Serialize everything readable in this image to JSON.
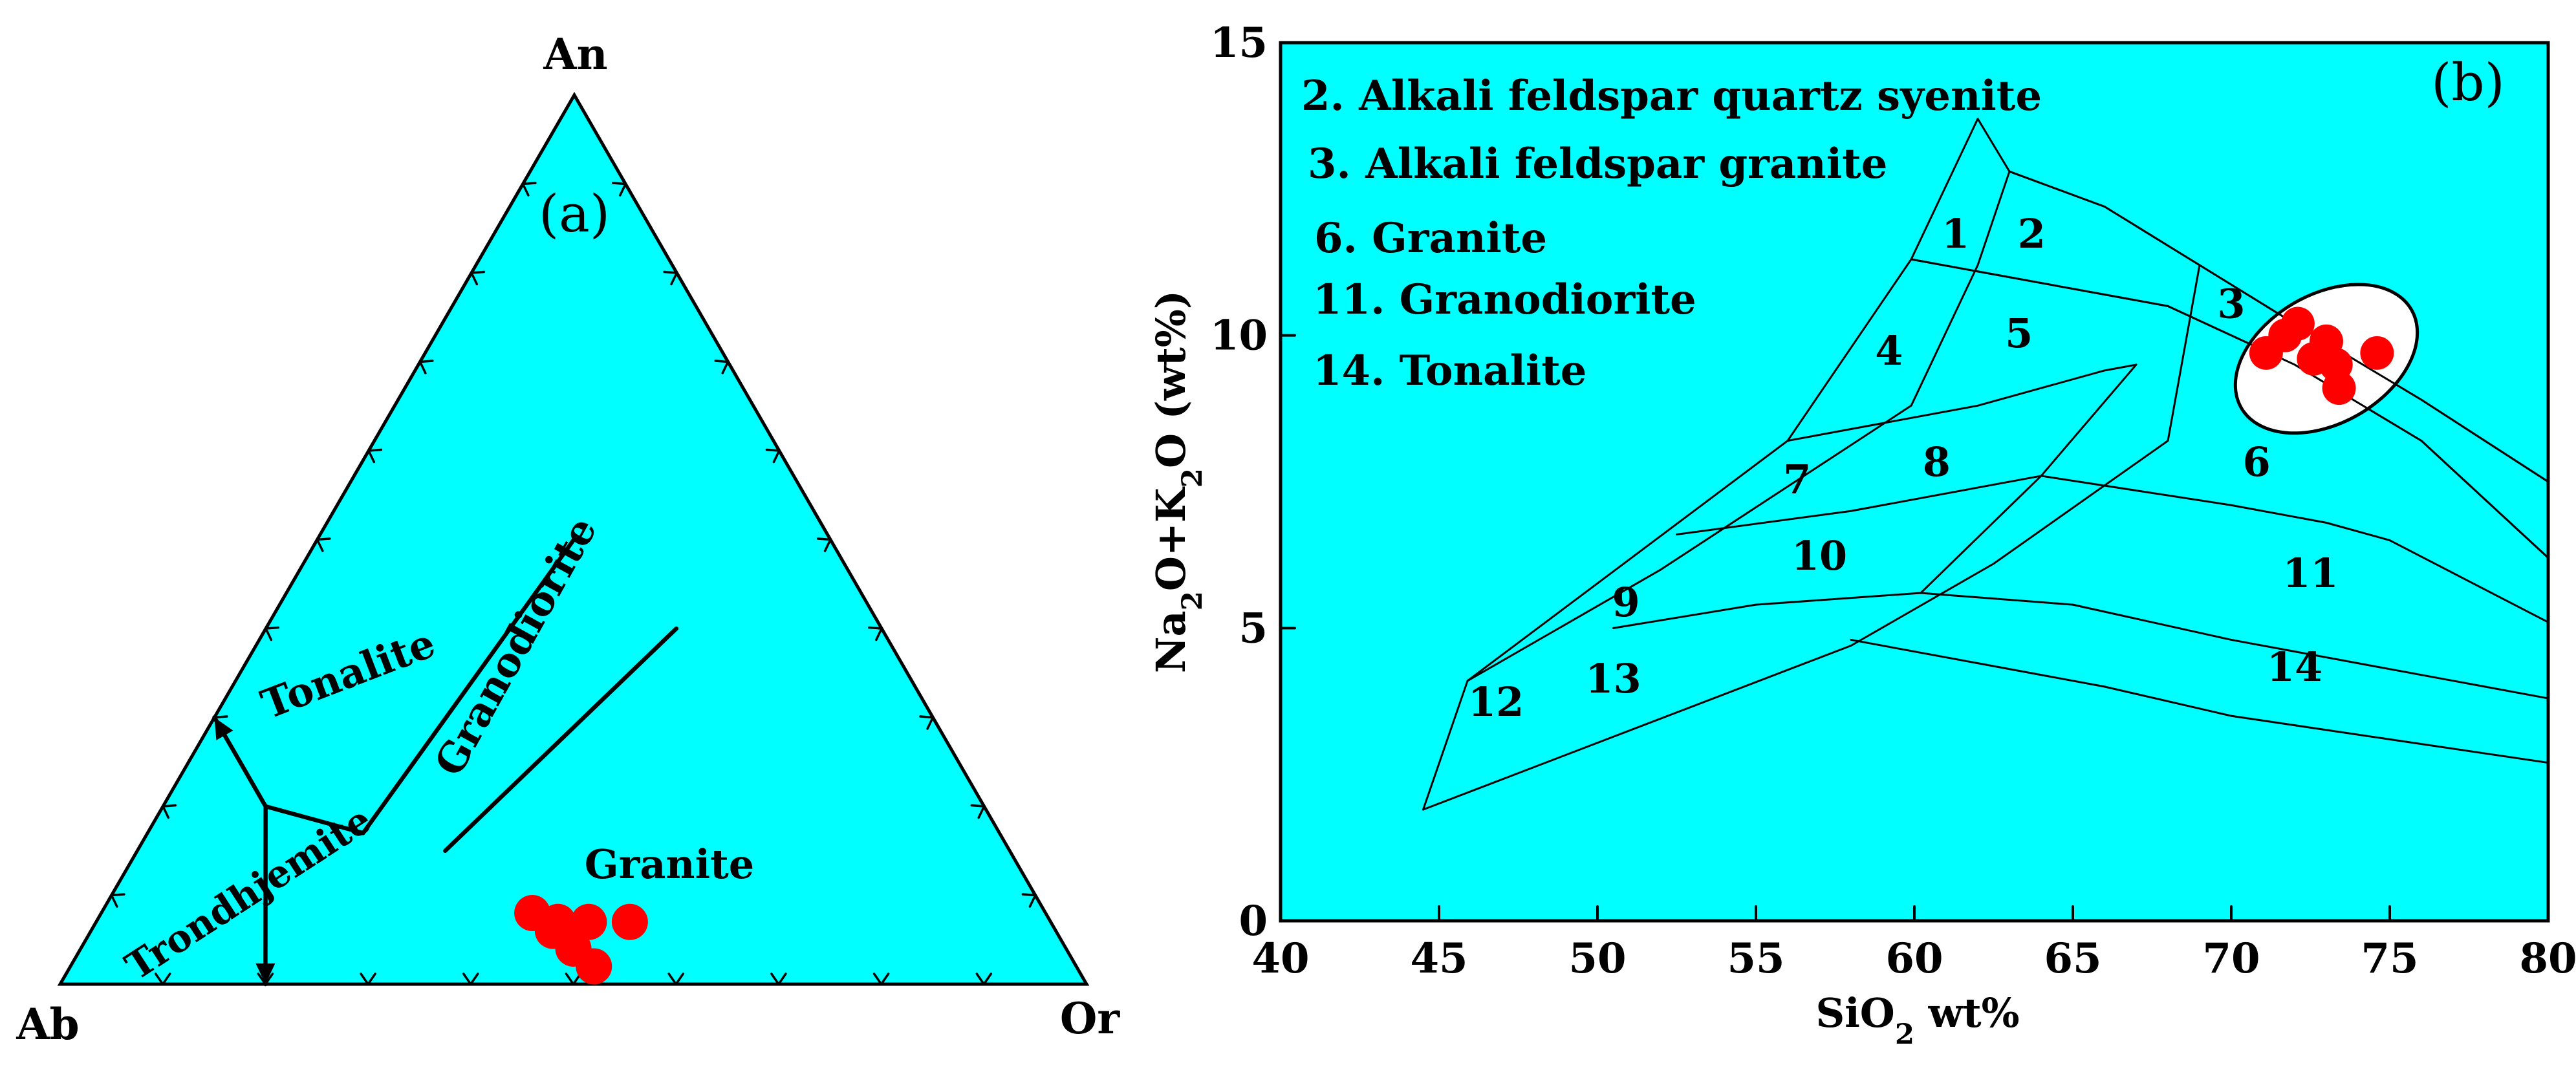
{
  "chart_data": [
    {
      "type": "ternary",
      "panel_label": "(a)",
      "vertices": {
        "top": "An",
        "left": "Ab",
        "right": "Or"
      },
      "fields": [
        {
          "label": "Tonalite"
        },
        {
          "label": "Granodiorite"
        },
        {
          "label": "Trondhjemite"
        },
        {
          "label": "Granite"
        }
      ],
      "field_boundaries": [
        [
          {
            "an": 0.3,
            "ab": 0.7,
            "or": 0.0
          },
          {
            "an": 0.2,
            "ab": 0.7,
            "or": 0.1
          },
          {
            "an": 0.17,
            "ab": 0.62,
            "or": 0.21
          }
        ],
        [
          {
            "an": 0.2,
            "ab": 0.7,
            "or": 0.1
          },
          {
            "an": 0.0,
            "ab": 0.8,
            "or": 0.2
          }
        ],
        [
          {
            "an": 0.17,
            "ab": 0.62,
            "or": 0.21
          },
          {
            "an": 0.5,
            "ab": 0.25,
            "or": 0.25
          }
        ],
        [
          {
            "an": 0.15,
            "ab": 0.55,
            "or": 0.3
          },
          {
            "an": 0.4,
            "ab": 0.2,
            "or": 0.4
          }
        ]
      ],
      "points": [
        {
          "an": 0.08,
          "ab": 0.5,
          "or": 0.42
        },
        {
          "an": 0.06,
          "ab": 0.49,
          "or": 0.45
        },
        {
          "an": 0.07,
          "ab": 0.48,
          "or": 0.45
        },
        {
          "an": 0.04,
          "ab": 0.48,
          "or": 0.48
        },
        {
          "an": 0.07,
          "ab": 0.45,
          "or": 0.48
        },
        {
          "an": 0.02,
          "ab": 0.47,
          "or": 0.51
        },
        {
          "an": 0.07,
          "ab": 0.41,
          "or": 0.52
        }
      ],
      "point_color": "#ff0000",
      "background_color": "#00ffff"
    },
    {
      "type": "scatter",
      "panel_label": "(b)",
      "xlabel": "SiO2 wt%",
      "ylabel": "Na2O+K2O (wt%)",
      "xlim": [
        40,
        80
      ],
      "ylim": [
        0,
        15
      ],
      "xticks": [
        40,
        45,
        50,
        55,
        60,
        65,
        70,
        75,
        80
      ],
      "yticks": [
        0,
        5,
        10,
        15
      ],
      "legend": [
        "2. Alkali feldspar quartz syenite",
        "3. Alkali feldspar granite",
        "6. Granite",
        "11. Granodiorite",
        "14. Tonalite"
      ],
      "field_boundaries": [
        [
          [
            44.5,
            1.9
          ],
          [
            45.9,
            4.1
          ],
          [
            56,
            8.2
          ],
          [
            59.9,
            11.3
          ],
          [
            62,
            13.7
          ],
          [
            63,
            12.8
          ]
        ],
        [
          [
            63,
            12.8
          ],
          [
            66,
            12.2
          ],
          [
            69,
            11.2
          ],
          [
            72,
            10.2
          ],
          [
            76,
            8.9
          ],
          [
            80,
            7.5
          ]
        ],
        [
          [
            44.5,
            1.9
          ],
          [
            58,
            4.7
          ],
          [
            62.5,
            6.1
          ],
          [
            68,
            8.2
          ],
          [
            69,
            11.2
          ]
        ],
        [
          [
            59.9,
            11.3
          ],
          [
            68,
            10.5
          ],
          [
            72,
            9.5
          ],
          [
            76,
            8.2
          ],
          [
            80,
            6.2
          ]
        ],
        [
          [
            56,
            8.2
          ],
          [
            62,
            8.8
          ],
          [
            66,
            9.4
          ],
          [
            67,
            9.5
          ]
        ],
        [
          [
            52.5,
            6.6
          ],
          [
            58,
            7.0
          ],
          [
            64,
            7.6
          ],
          [
            70,
            7.1
          ],
          [
            73,
            6.8
          ],
          [
            75,
            6.5
          ],
          [
            80,
            5.1
          ]
        ],
        [
          [
            50.5,
            5.0
          ],
          [
            55,
            5.4
          ],
          [
            60.2,
            5.6
          ],
          [
            65,
            5.4
          ],
          [
            70,
            4.8
          ],
          [
            80,
            3.8
          ]
        ],
        [
          [
            58,
            4.8
          ],
          [
            62,
            4.4
          ],
          [
            66,
            4.0
          ],
          [
            70,
            3.5
          ],
          [
            75,
            3.1
          ],
          [
            80,
            2.7
          ]
        ],
        [
          [
            45.9,
            4.1
          ],
          [
            52,
            6.0
          ],
          [
            59.9,
            8.8
          ],
          [
            62,
            11.2
          ],
          [
            63,
            12.8
          ]
        ],
        [
          [
            60.2,
            5.6
          ],
          [
            64,
            7.6
          ],
          [
            67,
            9.5
          ]
        ]
      ],
      "field_labels": [
        {
          "label": "1",
          "x": 61.3,
          "y": 11.5
        },
        {
          "label": "2",
          "x": 63.7,
          "y": 11.5
        },
        {
          "label": "3",
          "x": 70.0,
          "y": 10.3
        },
        {
          "label": "4",
          "x": 59.2,
          "y": 9.5
        },
        {
          "label": "5",
          "x": 63.3,
          "y": 9.8
        },
        {
          "label": "6",
          "x": 70.8,
          "y": 7.6
        },
        {
          "label": "7",
          "x": 56.3,
          "y": 7.3
        },
        {
          "label": "8",
          "x": 60.7,
          "y": 7.6
        },
        {
          "label": "9",
          "x": 50.9,
          "y": 5.2
        },
        {
          "label": "10",
          "x": 57.0,
          "y": 6.0
        },
        {
          "label": "11",
          "x": 72.5,
          "y": 5.7
        },
        {
          "label": "12",
          "x": 46.8,
          "y": 3.5
        },
        {
          "label": "13",
          "x": 50.5,
          "y": 3.9
        },
        {
          "label": "14",
          "x": 72.0,
          "y": 4.1
        }
      ],
      "highlight_ellipse": {
        "cx": 73.0,
        "cy": 9.6,
        "rx": 3.1,
        "ry": 1.1,
        "angle_deg": -30,
        "color": "#ffffff"
      },
      "points": [
        {
          "x": 71.1,
          "y": 9.7
        },
        {
          "x": 71.7,
          "y": 10.0
        },
        {
          "x": 72.1,
          "y": 10.2
        },
        {
          "x": 72.6,
          "y": 9.6
        },
        {
          "x": 73.0,
          "y": 9.9
        },
        {
          "x": 73.3,
          "y": 9.5
        },
        {
          "x": 73.4,
          "y": 9.1
        },
        {
          "x": 74.6,
          "y": 9.7
        }
      ],
      "point_color": "#ff0000",
      "background_color": "#00ffff"
    }
  ]
}
